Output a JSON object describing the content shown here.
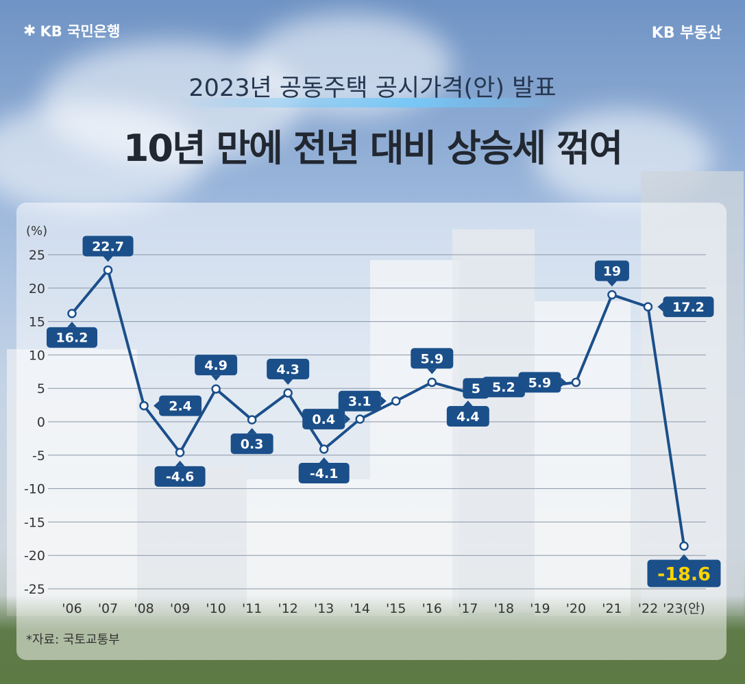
{
  "brand": {
    "left_logo": "KB 국민은행",
    "right_logo": "KB 부동산"
  },
  "titles": {
    "subtitle": "2023년 공동주택 공시가격(안) 발표",
    "headline": "10년 만에 전년 대비 상승세 꺾여"
  },
  "source_note": "*자료: 국토교통부",
  "colors": {
    "line": "#1b4f8a",
    "label_bg": "#1b4f8a",
    "highlight_bg": "#1b4f8a",
    "highlight_text": "#ffd400"
  },
  "chart_data": {
    "type": "line",
    "ylabel": "(%)",
    "ylim": [
      -25,
      25
    ],
    "yticks": [
      25,
      20,
      15,
      10,
      5,
      0,
      -5,
      -10,
      -15,
      -20,
      -25
    ],
    "grid": true,
    "categories": [
      "'06",
      "'07",
      "'08",
      "'09",
      "'10",
      "'11",
      "'12",
      "'13",
      "'14",
      "'15",
      "'16",
      "'17",
      "'18",
      "'19",
      "'20",
      "'21",
      "'22",
      "'23(안)"
    ],
    "series": [
      {
        "values": [
          16.2,
          22.7,
          2.4,
          -4.6,
          4.9,
          0.3,
          4.3,
          -4.1,
          0.4,
          3.1,
          5.9,
          4.4,
          5.0,
          5.2,
          5.9,
          19.0,
          17.2,
          -18.6
        ]
      }
    ],
    "data_labels": [
      "16.2",
      "22.7",
      "2.4",
      "-4.6",
      "4.9",
      "0.3",
      "4.3",
      "-4.1",
      "0.4",
      "3.1",
      "5.9",
      "4.4",
      "5",
      "5.2",
      "5.9",
      "19",
      "17.2",
      "-18.6"
    ],
    "highlight_index": 17
  }
}
